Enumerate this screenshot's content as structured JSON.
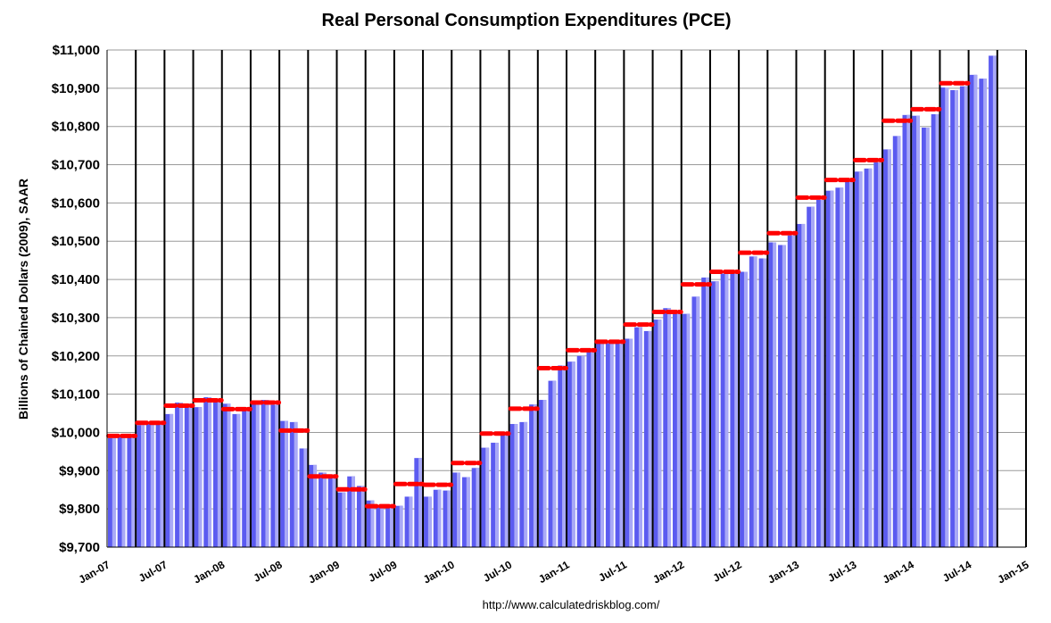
{
  "chart_data": {
    "type": "bar",
    "title": "Real Personal Consumption Expenditures (PCE)",
    "ylabel": "Billions of Chained Dollars (2009), SAAR",
    "xlabel": "",
    "source": "http://www.calculatedriskblog.com/",
    "ylim": [
      9700,
      11000
    ],
    "ytick_step": 100,
    "ytick_labels": [
      "$9,700",
      "$9,800",
      "$9,900",
      "$10,000",
      "$10,100",
      "$10,200",
      "$10,300",
      "$10,400",
      "$10,500",
      "$10,600",
      "$10,700",
      "$10,800",
      "$10,900",
      "$11,000"
    ],
    "x_start": "Jan-07",
    "x_end": "Jan-15",
    "xtick_labels": [
      "Jan-07",
      "Jul-07",
      "Jan-08",
      "Jul-08",
      "Jan-09",
      "Jul-09",
      "Jan-10",
      "Jul-10",
      "Jan-11",
      "Jul-11",
      "Jan-12",
      "Jul-12",
      "Jan-13",
      "Jul-13",
      "Jan-14",
      "Jul-14",
      "Jan-15"
    ],
    "grid": true,
    "colors": {
      "bar": "#5b5bf0",
      "bar_highlight": "#a9a9f7",
      "quarterly_avg": "#ff0000",
      "quarter_line": "#000000",
      "gridline": "#9a9a9a"
    },
    "series": [
      {
        "kind": "monthly",
        "x": [
          "2007-01",
          "2007-02",
          "2007-03",
          "2007-04",
          "2007-05",
          "2007-06",
          "2007-07",
          "2007-08",
          "2007-09",
          "2007-10",
          "2007-11",
          "2007-12",
          "2008-01",
          "2008-02",
          "2008-03",
          "2008-04",
          "2008-05",
          "2008-06",
          "2008-07",
          "2008-08",
          "2008-09",
          "2008-10",
          "2008-11",
          "2008-12",
          "2009-01",
          "2009-02",
          "2009-03",
          "2009-04",
          "2009-05",
          "2009-06",
          "2009-07",
          "2009-08",
          "2009-09",
          "2009-10",
          "2009-11",
          "2009-12",
          "2010-01",
          "2010-02",
          "2010-03",
          "2010-04",
          "2010-05",
          "2010-06",
          "2010-07",
          "2010-08",
          "2010-09",
          "2010-10",
          "2010-11",
          "2010-12",
          "2011-01",
          "2011-02",
          "2011-03",
          "2011-04",
          "2011-05",
          "2011-06",
          "2011-07",
          "2011-08",
          "2011-09",
          "2011-10",
          "2011-11",
          "2011-12",
          "2012-01",
          "2012-02",
          "2012-03",
          "2012-04",
          "2012-05",
          "2012-06",
          "2012-07",
          "2012-08",
          "2012-09",
          "2012-10",
          "2012-11",
          "2012-12",
          "2013-01",
          "2013-02",
          "2013-03",
          "2013-04",
          "2013-05",
          "2013-06",
          "2013-07",
          "2013-08",
          "2013-09",
          "2013-10",
          "2013-11",
          "2013-12",
          "2014-01",
          "2014-02",
          "2014-03",
          "2014-04",
          "2014-05",
          "2014-06",
          "2014-07",
          "2014-08",
          "2014-09"
        ],
        "values": [
          9985,
          9988,
          9991,
          10019,
          10024,
          10025,
          10048,
          10078,
          10075,
          10066,
          10092,
          10088,
          10075,
          10048,
          10060,
          10075,
          10085,
          10072,
          10030,
          10027,
          9958,
          9915,
          9895,
          9890,
          9843,
          9885,
          9860,
          9822,
          9805,
          9810,
          9808,
          9832,
          9933,
          9832,
          9850,
          9848,
          9895,
          9883,
          9907,
          9960,
          9973,
          9998,
          10022,
          10027,
          10073,
          10085,
          10135,
          10175,
          10185,
          10200,
          10210,
          10240,
          10233,
          10237,
          10245,
          10275,
          10265,
          10295,
          10325,
          10310,
          10310,
          10355,
          10405,
          10395,
          10415,
          10418,
          10420,
          10460,
          10455,
          10497,
          10490,
          10515,
          10545,
          10590,
          10608,
          10632,
          10640,
          10655,
          10682,
          10690,
          10706,
          10740,
          10775,
          10830,
          10828,
          10797,
          10832,
          10902,
          10895,
          10905,
          10935,
          10925,
          10985
        ]
      },
      {
        "kind": "quarterly_average",
        "quarters": [
          "2007Q1",
          "2007Q2",
          "2007Q3",
          "2007Q4",
          "2008Q1",
          "2008Q2",
          "2008Q3",
          "2008Q4",
          "2009Q1",
          "2009Q2",
          "2009Q3",
          "2009Q4",
          "2010Q1",
          "2010Q2",
          "2010Q3",
          "2010Q4",
          "2011Q1",
          "2011Q2",
          "2011Q3",
          "2011Q4",
          "2012Q1",
          "2012Q2",
          "2012Q3",
          "2012Q4",
          "2013Q1",
          "2013Q2",
          "2013Q3",
          "2013Q4",
          "2014Q1",
          "2014Q2"
        ],
        "values": [
          9991,
          10025,
          10070,
          10084,
          10061,
          10078,
          10005,
          9885,
          9851,
          9807,
          9865,
          9863,
          9920,
          9997,
          10062,
          10168,
          10215,
          10237,
          10282,
          10315,
          10387,
          10420,
          10470,
          10521,
          10614,
          10660,
          10712,
          10815,
          10845,
          10913
        ]
      }
    ]
  }
}
